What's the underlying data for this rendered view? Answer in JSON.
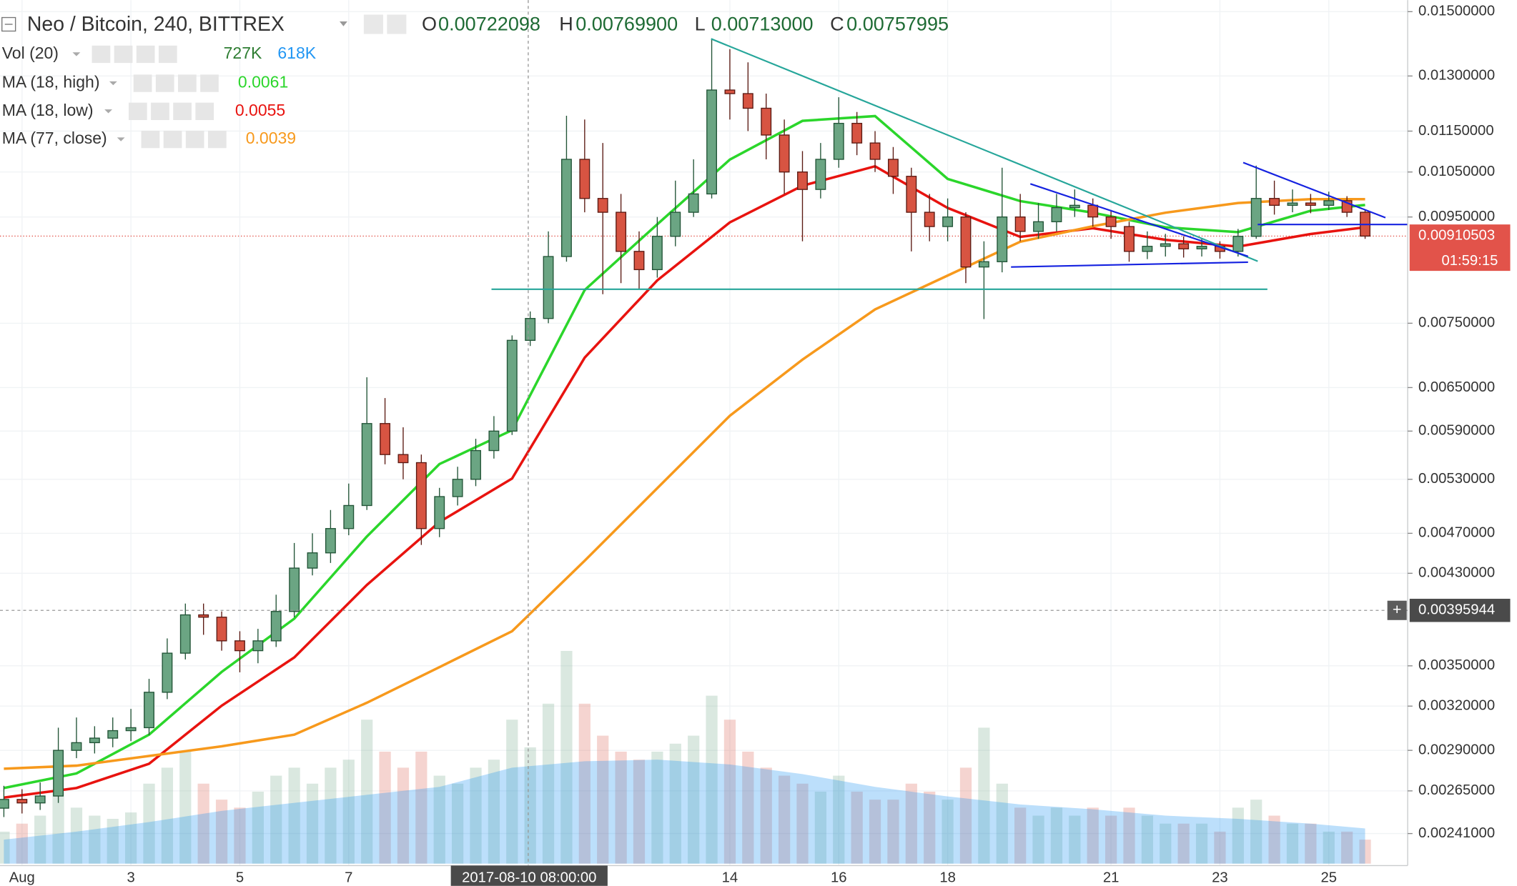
{
  "chart_data": {
    "type": "candlestick",
    "title": "Neo / Bitcoin, 240, BITTREX",
    "ohlc_legend": [
      {
        "letter": "O",
        "value": {
          "value": 0.00722098,
          "label": "0.00722098"
        }
      },
      {
        "letter": "H",
        "value": {
          "value": 0.007699,
          "label": "0.00769900"
        }
      },
      {
        "letter": "L",
        "value": {
          "value": 0.00713,
          "label": "0.00713000"
        }
      },
      {
        "letter": "C",
        "value": {
          "value": 0.00757995,
          "label": "0.00757995"
        }
      }
    ],
    "log_scale": true,
    "grid": true,
    "up_color": "#6ba583",
    "down_color": "#d75442",
    "open": [
      0.00255,
      0.0026,
      0.00258,
      0.00262,
      0.0029,
      0.00295,
      0.00298,
      0.00303,
      0.00305,
      0.0033,
      0.0036,
      0.00392,
      0.0039,
      0.0037,
      0.00362,
      0.0037,
      0.00395,
      0.00435,
      0.0045,
      0.00475,
      0.005,
      0.006,
      0.0056,
      0.0055,
      0.00475,
      0.0051,
      0.0053,
      0.00565,
      0.0059,
      0.00722,
      0.00758,
      0.0087,
      0.0108,
      0.0099,
      0.0096,
      0.0088,
      0.00845,
      0.0091,
      0.0096,
      0.01,
      0.0126,
      0.0125,
      0.0121,
      0.0114,
      0.0105,
      0.0101,
      0.0108,
      0.0117,
      0.0112,
      0.0108,
      0.0104,
      0.0096,
      0.0093,
      0.0095,
      0.0085,
      0.0086,
      0.0095,
      0.0092,
      0.0094,
      0.0097,
      0.00975,
      0.0095,
      0.0093,
      0.0088,
      0.0089,
      0.00895,
      0.00885,
      0.0089,
      0.0088,
      0.0091,
      0.0099,
      0.00975,
      0.0098,
      0.00975,
      0.00985,
      0.0096
    ],
    "high": [
      0.00268,
      0.00266,
      0.0027,
      0.00305,
      0.00312,
      0.00306,
      0.00312,
      0.00318,
      0.0034,
      0.00372,
      0.00402,
      0.00402,
      0.00395,
      0.00378,
      0.0038,
      0.0041,
      0.0046,
      0.0047,
      0.00495,
      0.00525,
      0.00665,
      0.00635,
      0.00595,
      0.0056,
      0.0052,
      0.00545,
      0.0058,
      0.0061,
      0.0073,
      0.007699,
      0.0092,
      0.0119,
      0.0118,
      0.0112,
      0.01,
      0.0092,
      0.0095,
      0.0103,
      0.0108,
      0.01412,
      0.0138,
      0.0134,
      0.0125,
      0.0118,
      0.011,
      0.0112,
      0.0124,
      0.012,
      0.0115,
      0.0111,
      0.0106,
      0.01,
      0.0099,
      0.0096,
      0.009,
      0.0106,
      0.01,
      0.0098,
      0.01,
      0.0101,
      0.0099,
      0.00965,
      0.0094,
      0.0092,
      0.00915,
      0.0091,
      0.00905,
      0.009,
      0.00925,
      0.01065,
      0.0103,
      0.0101,
      0.01,
      0.01005,
      0.00995,
      0.00965
    ],
    "low": [
      0.0025,
      0.00252,
      0.00254,
      0.00258,
      0.00285,
      0.00288,
      0.00292,
      0.00296,
      0.003,
      0.00325,
      0.00355,
      0.00375,
      0.00362,
      0.00345,
      0.00352,
      0.00365,
      0.0039,
      0.00428,
      0.0044,
      0.00468,
      0.00495,
      0.00548,
      0.0053,
      0.00458,
      0.00466,
      0.005,
      0.00522,
      0.00555,
      0.00585,
      0.00713,
      0.0075,
      0.0086,
      0.0096,
      0.008,
      0.0082,
      0.0081,
      0.0083,
      0.0089,
      0.0095,
      0.0099,
      0.0118,
      0.0115,
      0.0108,
      0.01,
      0.009,
      0.0099,
      0.0106,
      0.0109,
      0.0105,
      0.01,
      0.0088,
      0.009,
      0.009,
      0.0082,
      0.00757,
      0.0084,
      0.009,
      0.00905,
      0.0092,
      0.0095,
      0.0093,
      0.00905,
      0.0086,
      0.00865,
      0.0087,
      0.00868,
      0.0087,
      0.00866,
      0.0087,
      0.00905,
      0.00955,
      0.0096,
      0.00958,
      0.00965,
      0.0095,
      0.00905
    ],
    "close": [
      0.0026,
      0.00258,
      0.00262,
      0.0029,
      0.00295,
      0.00298,
      0.00303,
      0.00305,
      0.0033,
      0.0036,
      0.00392,
      0.0039,
      0.0037,
      0.00362,
      0.0037,
      0.00395,
      0.00435,
      0.0045,
      0.00475,
      0.005,
      0.006,
      0.0056,
      0.0055,
      0.00475,
      0.0051,
      0.0053,
      0.00565,
      0.0059,
      0.00722,
      0.00757995,
      0.0087,
      0.0108,
      0.0099,
      0.0096,
      0.0088,
      0.00845,
      0.0091,
      0.0096,
      0.01,
      0.0126,
      0.0125,
      0.0121,
      0.0114,
      0.0105,
      0.0101,
      0.0108,
      0.0117,
      0.0112,
      0.0108,
      0.0104,
      0.0096,
      0.0093,
      0.0095,
      0.0085,
      0.0086,
      0.0095,
      0.0092,
      0.0094,
      0.0097,
      0.00975,
      0.0095,
      0.0093,
      0.0088,
      0.0089,
      0.00895,
      0.00885,
      0.0089,
      0.0088,
      0.0091,
      0.0099,
      0.00975,
      0.0098,
      0.00975,
      0.00985,
      0.0096,
      0.00910503
    ],
    "ylim": [
      0.002254,
      0.01539
    ],
    "yticks": [
      {
        "value": 0.015,
        "label": "0.01500000"
      },
      {
        "value": 0.013,
        "label": "0.01300000"
      },
      {
        "value": 0.0115,
        "label": "0.01150000"
      },
      {
        "value": 0.0105,
        "label": "0.01050000"
      },
      {
        "value": 0.0095,
        "label": "0.00950000"
      },
      {
        "value": 0.0075,
        "label": "0.00750000"
      },
      {
        "value": 0.0065,
        "label": "0.00650000"
      },
      {
        "value": 0.0059,
        "label": "0.00590000"
      },
      {
        "value": 0.0053,
        "label": "0.00530000"
      },
      {
        "value": 0.0047,
        "label": "0.00470000"
      },
      {
        "value": 0.0043,
        "label": "0.00430000"
      },
      {
        "value": 0.0035,
        "label": "0.00350000"
      },
      {
        "value": 0.0032,
        "label": "0.00320000"
      },
      {
        "value": 0.0029,
        "label": "0.00290000"
      },
      {
        "value": 0.00265,
        "label": "0.00265000"
      },
      {
        "value": 0.00241,
        "label": "0.00241000"
      }
    ],
    "xticks": [
      {
        "value": 1,
        "label": "Aug"
      },
      {
        "value": 7,
        "label": "3"
      },
      {
        "value": 13,
        "label": "5"
      },
      {
        "value": 19,
        "label": "7"
      },
      {
        "value": 40,
        "label": "14"
      },
      {
        "value": 46,
        "label": "16"
      },
      {
        "value": 52,
        "label": "18"
      },
      {
        "value": 61,
        "label": "21"
      },
      {
        "value": 67,
        "label": "23"
      },
      {
        "value": 73,
        "label": "25"
      }
    ],
    "crosshair": {
      "time": "2017-08-10 08:00:00",
      "price": {
        "value": 0.00395944,
        "label": "0.00395944"
      }
    },
    "last_price": {
      "value": 0.00910503,
      "label": "0.00910503"
    },
    "countdown": "01:59:15",
    "volume": {
      "name": "Vol (20)",
      "legend_values": [
        {
          "value": 727000,
          "label": "727K",
          "color": "#2e7d32"
        },
        {
          "value": 618000,
          "label": "618K",
          "color": "#2196f3"
        }
      ],
      "values": [
        200000,
        250000,
        300000,
        450000,
        350000,
        300000,
        280000,
        320000,
        500000,
        600000,
        700000,
        500000,
        400000,
        350000,
        450000,
        550000,
        600000,
        500000,
        600000,
        650000,
        900000,
        700000,
        600000,
        700000,
        550000,
        500000,
        600000,
        650000,
        900000,
        727000,
        1000000,
        1330000,
        1000000,
        800000,
        700000,
        650000,
        700000,
        750000,
        800000,
        1050000,
        900000,
        700000,
        600000,
        550000,
        500000,
        450000,
        550000,
        450000,
        400000,
        400000,
        500000,
        450000,
        400000,
        600000,
        850000,
        500000,
        350000,
        300000,
        350000,
        300000,
        350000,
        300000,
        350000,
        300000,
        250000,
        250000,
        250000,
        200000,
        350000,
        400000,
        300000,
        250000,
        250000,
        200000,
        200000,
        150000
      ],
      "ma_x": [
        0,
        4,
        8,
        12,
        16,
        20,
        24,
        28,
        32,
        36,
        40,
        44,
        48,
        52,
        56,
        60,
        64,
        68,
        72,
        75
      ],
      "ma_values": [
        150000,
        200000,
        260000,
        330000,
        380000,
        430000,
        480000,
        600000,
        640000,
        650000,
        620000,
        560000,
        480000,
        420000,
        370000,
        340000,
        300000,
        280000,
        250000,
        220000
      ]
    },
    "series": [
      {
        "name": "MA (18, high)",
        "color": "#2bd62b",
        "legend_value": 0.0061,
        "x": [
          0,
          4,
          8,
          12,
          16,
          20,
          24,
          28,
          32,
          36,
          40,
          44,
          48,
          52,
          56,
          60,
          64,
          68,
          72,
          75
        ],
        "values": [
          0.002667,
          0.002755,
          0.003003,
          0.003453,
          0.003887,
          0.004667,
          0.005483,
          0.005912,
          0.008075,
          0.009347,
          0.010794,
          0.011765,
          0.011891,
          0.01034,
          0.009842,
          0.009591,
          0.009285,
          0.009186,
          0.009632,
          0.009758
        ]
      },
      {
        "name": "MA (18, low)",
        "color": "#e8130f",
        "legend_value": 0.0055,
        "x": [
          0,
          4,
          8,
          12,
          16,
          20,
          24,
          28,
          32,
          36,
          40,
          44,
          48,
          52,
          56,
          60,
          64,
          68,
          72,
          75
        ],
        "values": [
          0.002611,
          0.002667,
          0.002815,
          0.003203,
          0.003566,
          0.00419,
          0.00482,
          0.005309,
          0.006947,
          0.00825,
          0.009387,
          0.010185,
          0.010634,
          0.009693,
          0.009089,
          0.009266,
          0.00903,
          0.008895,
          0.009147,
          0.009285
        ]
      },
      {
        "name": "MA (77, close)",
        "color": "#f7991c",
        "legend_value": 0.0039,
        "x": [
          0,
          4,
          8,
          12,
          16,
          20,
          24,
          28,
          32,
          36,
          40,
          44,
          48,
          52,
          56,
          60,
          64,
          68,
          72,
          75
        ],
        "values": [
          0.002784,
          0.002803,
          0.002864,
          0.002926,
          0.003003,
          0.003224,
          0.00349,
          0.00378,
          0.004422,
          0.005196,
          0.006105,
          0.006917,
          0.007734,
          0.00834,
          0.008991,
          0.009306,
          0.009591,
          0.0098,
          0.009884,
          0.009884
        ]
      }
    ]
  }
}
